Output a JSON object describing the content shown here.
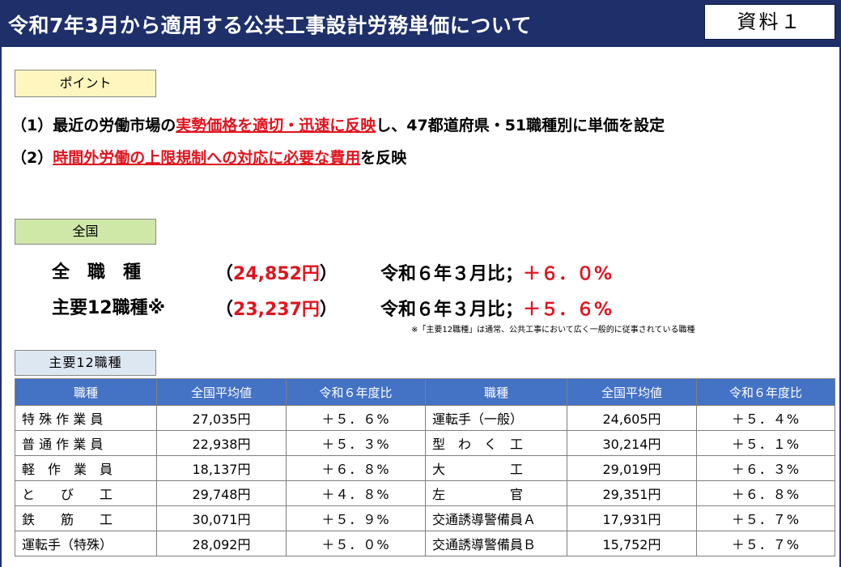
{
  "header": {
    "title": "令和7年3月から適用する公共工事設計労務単価について",
    "doc_label": "資料１"
  },
  "point": {
    "label": "ポイント",
    "line1": {
      "num": "（1）",
      "pre": "最近の労働市場の",
      "red": "実勢価格を適切・迅速に反映",
      "post": "し、47都道府県・51職種別に単価を設定"
    },
    "line2": {
      "num": "（2）",
      "red": "時間外労働の上限規制への対応に必要な費用",
      "post": "を反映"
    }
  },
  "national": {
    "label": "全国",
    "all": {
      "name": "全　職　種",
      "open": "（",
      "value": "24,852円",
      "close": "）",
      "compare": "令和６年３月比；",
      "change": "＋６．０%"
    },
    "main12": {
      "name": "主要12職種※",
      "open": "（",
      "value": "23,237円",
      "close": "）",
      "compare": "令和６年３月比；",
      "change": "＋５．６%"
    },
    "note": "※「主要12職種」は通常、公共工事において広く一般的に従事されている職種"
  },
  "main12_table": {
    "label": "主要12職種",
    "headers": [
      "職種",
      "全国平均値",
      "令和６年度比",
      "職種",
      "全国平均値",
      "令和６年度比"
    ],
    "rows": [
      [
        "特 殊 作 業 員",
        "27,035円",
        "＋５．６%",
        "運転手（一般）",
        "24,605円",
        "＋５．４%"
      ],
      [
        "普 通 作 業 員",
        "22,938円",
        "＋５．３%",
        "型　わ　く　工",
        "30,214円",
        "＋５．１%"
      ],
      [
        "軽　作　業　員",
        "18,137円",
        "＋６．８%",
        "大　　　　　工",
        "29,019円",
        "＋６．３%"
      ],
      [
        "と　　び　　工",
        "29,748円",
        "＋４．８%",
        "左　　　　　官",
        "29,351円",
        "＋６．８%"
      ],
      [
        "鉄　　筋　　工",
        "30,071円",
        "＋５．９%",
        "交通誘導警備員Ａ",
        "17,931円",
        "＋５．７%"
      ],
      [
        "運転手（特殊）",
        "28,092円",
        "＋５．０%",
        "交通誘導警備員Ｂ",
        "15,752円",
        "＋５．７%"
      ]
    ]
  }
}
